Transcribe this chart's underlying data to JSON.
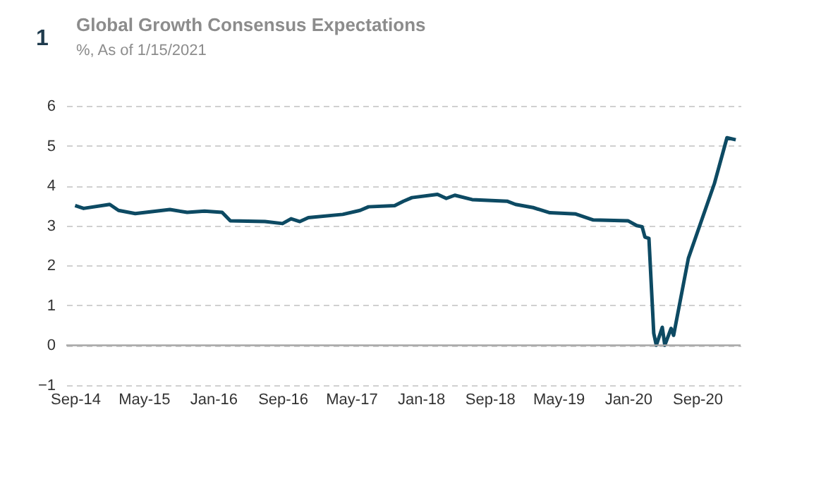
{
  "chart_data": {
    "type": "line",
    "title": "Global Growth Consensus Expectations",
    "subtitle": "%, As of 1/15/2021",
    "annotations": [
      "1"
    ],
    "x": [
      "2014-09-01",
      "2014-10-01",
      "2015-01-01",
      "2015-02-01",
      "2015-04-01",
      "2015-08-01",
      "2015-10-01",
      "2015-12-01",
      "2016-02-01",
      "2016-03-01",
      "2016-07-01",
      "2016-09-01",
      "2016-10-01",
      "2016-11-01",
      "2016-12-01",
      "2017-04-01",
      "2017-06-01",
      "2017-07-01",
      "2017-10-01",
      "2017-11-01",
      "2017-12-01",
      "2018-03-01",
      "2018-04-01",
      "2018-05-01",
      "2018-07-01",
      "2018-11-01",
      "2018-12-01",
      "2019-02-01",
      "2019-04-01",
      "2019-07-01",
      "2019-09-01",
      "2020-01-01",
      "2020-02-01",
      "2020-02-20",
      "2020-03-01",
      "2020-03-15",
      "2020-04-01",
      "2020-04-10",
      "2020-05-01",
      "2020-05-10",
      "2020-06-01",
      "2020-06-10",
      "2020-08-01",
      "2020-11-01",
      "2020-12-15",
      "2021-01-15"
    ],
    "series": [
      {
        "color": "#0d4a63",
        "values": [
          3.5,
          3.43,
          3.53,
          3.38,
          3.3,
          3.4,
          3.33,
          3.36,
          3.33,
          3.12,
          3.1,
          3.05,
          3.17,
          3.1,
          3.2,
          3.28,
          3.38,
          3.47,
          3.5,
          3.61,
          3.7,
          3.78,
          3.68,
          3.76,
          3.65,
          3.61,
          3.53,
          3.45,
          3.32,
          3.29,
          3.14,
          3.12,
          3.0,
          2.97,
          2.71,
          2.68,
          0.3,
          0.0,
          0.45,
          0.0,
          0.42,
          0.25,
          2.18,
          4.06,
          5.2,
          5.15
        ]
      }
    ],
    "xlim": [
      "2014-08-01",
      "2021-02-01"
    ],
    "xticks": [
      {
        "value": "2014-09-01",
        "label": "Sep-14"
      },
      {
        "value": "2015-05-01",
        "label": "May-15"
      },
      {
        "value": "2016-01-01",
        "label": "Jan-16"
      },
      {
        "value": "2016-09-01",
        "label": "Sep-16"
      },
      {
        "value": "2017-05-01",
        "label": "May-17"
      },
      {
        "value": "2018-01-01",
        "label": "Jan-18"
      },
      {
        "value": "2018-09-01",
        "label": "Sep-18"
      },
      {
        "value": "2019-05-01",
        "label": "May-19"
      },
      {
        "value": "2020-01-01",
        "label": "Jan-20"
      },
      {
        "value": "2020-09-01",
        "label": "Sep-20"
      }
    ],
    "ylim": [
      -1,
      6
    ],
    "yticks": [
      -1,
      0,
      1,
      2,
      3,
      4,
      5,
      6
    ],
    "grid": "y",
    "line_style": "solid",
    "legend": false,
    "ref_lines": [
      {
        "axis": "y",
        "value": 0,
        "color": "#a6a6a6"
      }
    ]
  }
}
